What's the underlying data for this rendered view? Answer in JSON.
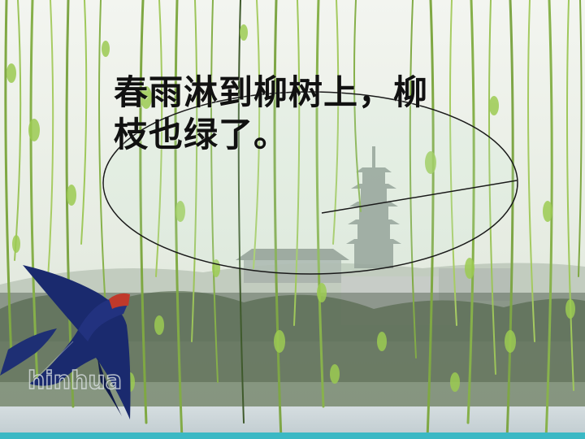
{
  "slide": {
    "caption_line1": "春雨淋到柳树上，柳",
    "caption_line2": "枝也绿了。",
    "watermark": "hinhua"
  },
  "colors": {
    "sky": "#eef1ea",
    "willow": "#8ebc4a",
    "water": "#c9d4d8",
    "swallow": "#1a2a6e",
    "throat": "#c0392b",
    "bottom_bar": "#3bb8c4"
  },
  "icons": {
    "bird": "swallow-icon",
    "bubble": "speech-bubble-icon"
  }
}
